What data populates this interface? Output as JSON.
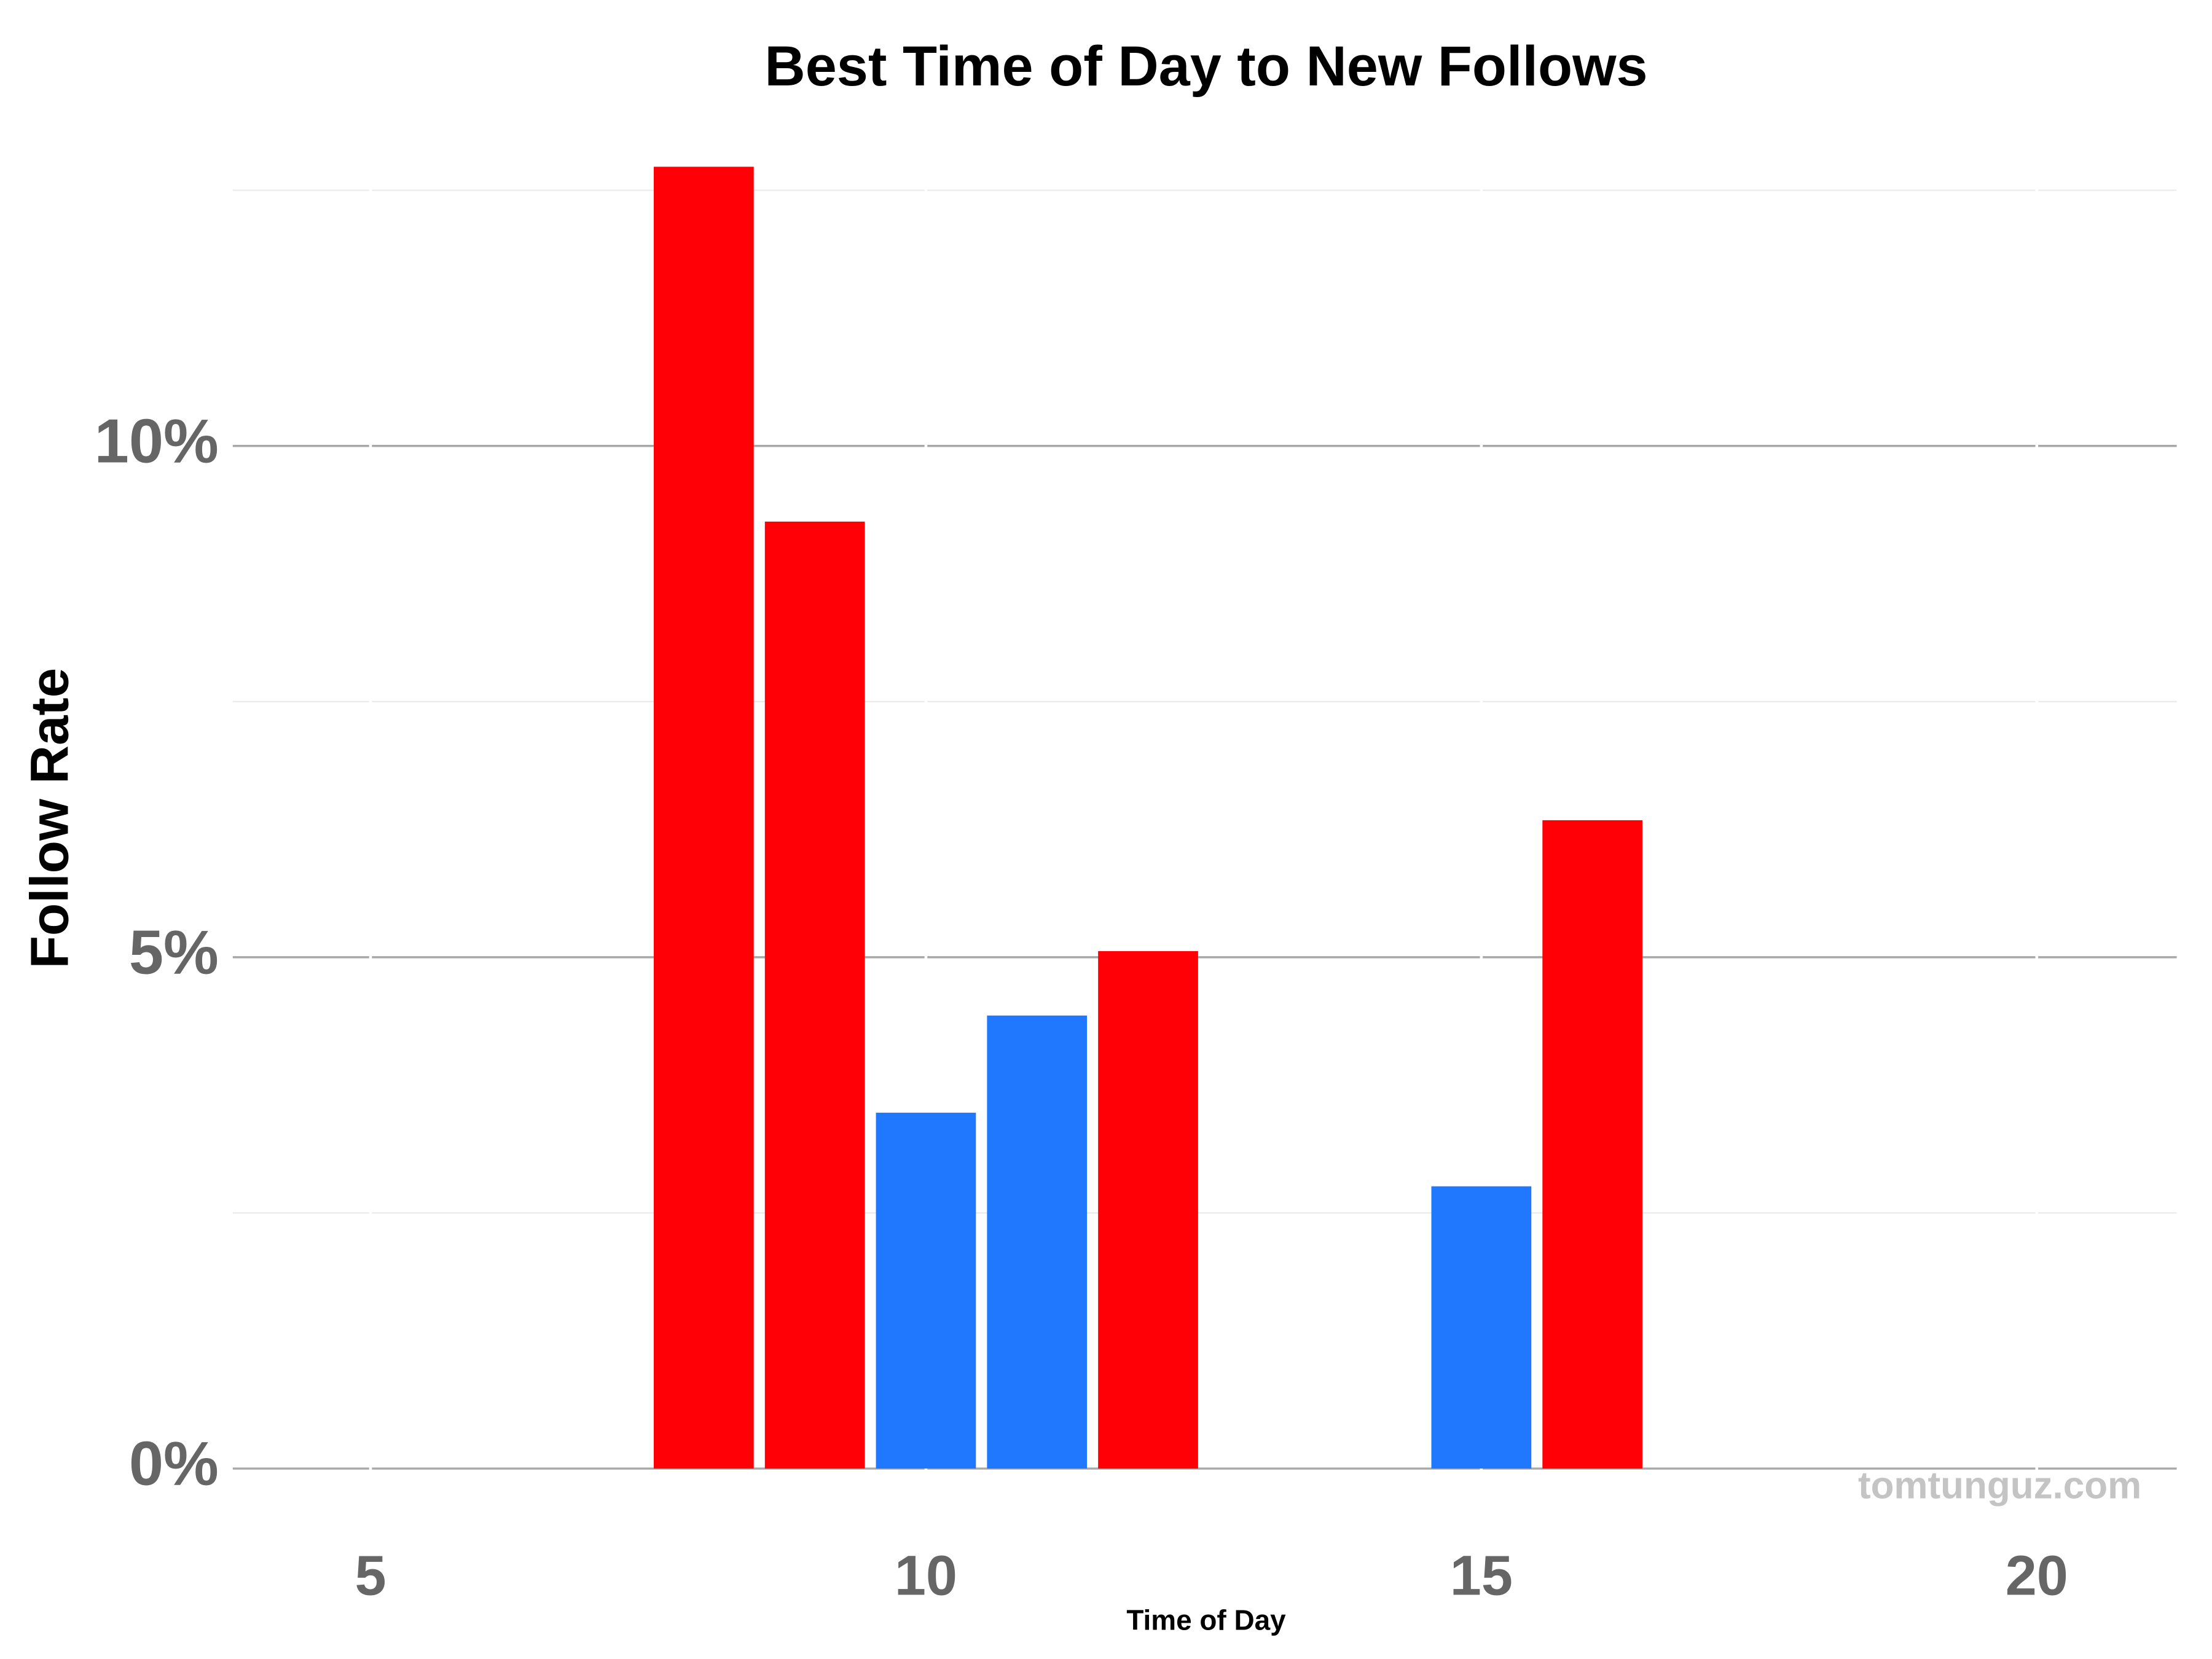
{
  "chart_data": {
    "type": "bar",
    "title": "Best Time of Day to New Follows",
    "x_label": "Time of Day",
    "y_label": "Follow Rate",
    "watermark": "tomtunguz.com",
    "x": [
      8,
      9,
      10,
      11,
      12,
      15,
      16
    ],
    "values": [
      12.73,
      9.26,
      3.48,
      4.43,
      5.06,
      2.76,
      6.34
    ],
    "colors": [
      "#fe0006",
      "#fe0006",
      "#1f78ff",
      "#1f78ff",
      "#fe0006",
      "#1f78ff",
      "#fe0006"
    ],
    "bar_width": 0.9,
    "xlim": [
      3.76,
      21.26
    ],
    "xticks": [
      5,
      10,
      15,
      20
    ],
    "ylim": [
      -0.4,
      13.05
    ],
    "yticks": [
      {
        "value": 0,
        "label": "0%"
      },
      {
        "value": 5,
        "label": "5%"
      },
      {
        "value": 10,
        "label": "10%"
      }
    ],
    "yminor": [
      2.5,
      7.5,
      12.5
    ],
    "grid": true
  }
}
